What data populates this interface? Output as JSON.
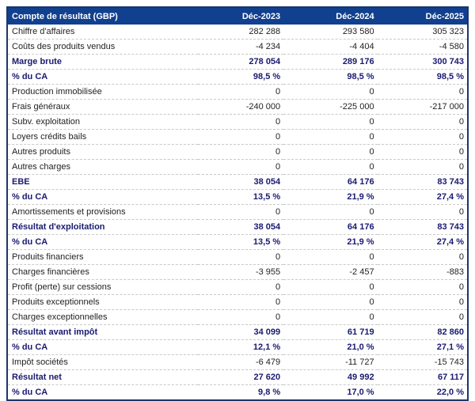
{
  "chart_data": {
    "type": "table",
    "title": "Compte de résultat (GBP)",
    "columns": [
      "Déc-2023",
      "Déc-2024",
      "Déc-2025"
    ],
    "rows": [
      {
        "label": "Chiffre d'affaires",
        "values": [
          "282 288",
          "293 580",
          "305 323"
        ],
        "bold": false
      },
      {
        "label": "Coûts des produits vendus",
        "values": [
          "-4 234",
          "-4 404",
          "-4 580"
        ],
        "bold": false
      },
      {
        "label": "Marge brute",
        "values": [
          "278 054",
          "289 176",
          "300 743"
        ],
        "bold": true
      },
      {
        "label": "% du CA",
        "values": [
          "98,5 %",
          "98,5 %",
          "98,5 %"
        ],
        "bold": true
      },
      {
        "label": "Production immobilisée",
        "values": [
          "0",
          "0",
          "0"
        ],
        "bold": false
      },
      {
        "label": "Frais généraux",
        "values": [
          "-240 000",
          "-225 000",
          "-217 000"
        ],
        "bold": false
      },
      {
        "label": "Subv. exploitation",
        "values": [
          "0",
          "0",
          "0"
        ],
        "bold": false
      },
      {
        "label": "Loyers crédits bails",
        "values": [
          "0",
          "0",
          "0"
        ],
        "bold": false
      },
      {
        "label": "Autres produits",
        "values": [
          "0",
          "0",
          "0"
        ],
        "bold": false
      },
      {
        "label": "Autres charges",
        "values": [
          "0",
          "0",
          "0"
        ],
        "bold": false
      },
      {
        "label": "EBE",
        "values": [
          "38 054",
          "64 176",
          "83 743"
        ],
        "bold": true
      },
      {
        "label": "% du CA",
        "values": [
          "13,5 %",
          "21,9 %",
          "27,4 %"
        ],
        "bold": true
      },
      {
        "label": "Amortissements et provisions",
        "values": [
          "0",
          "0",
          "0"
        ],
        "bold": false
      },
      {
        "label": "Résultat d'exploitation",
        "values": [
          "38 054",
          "64 176",
          "83 743"
        ],
        "bold": true
      },
      {
        "label": "% du CA",
        "values": [
          "13,5 %",
          "21,9 %",
          "27,4 %"
        ],
        "bold": true
      },
      {
        "label": "Produits financiers",
        "values": [
          "0",
          "0",
          "0"
        ],
        "bold": false
      },
      {
        "label": "Charges financières",
        "values": [
          "-3 955",
          "-2 457",
          "-883"
        ],
        "bold": false
      },
      {
        "label": "Profit (perte) sur cessions",
        "values": [
          "0",
          "0",
          "0"
        ],
        "bold": false
      },
      {
        "label": "Produits exceptionnels",
        "values": [
          "0",
          "0",
          "0"
        ],
        "bold": false
      },
      {
        "label": "Charges exceptionnelles",
        "values": [
          "0",
          "0",
          "0"
        ],
        "bold": false
      },
      {
        "label": "Résultat avant impôt",
        "values": [
          "34 099",
          "61 719",
          "82 860"
        ],
        "bold": true
      },
      {
        "label": "% du CA",
        "values": [
          "12,1 %",
          "21,0 %",
          "27,1 %"
        ],
        "bold": true
      },
      {
        "label": "Impôt sociétés",
        "values": [
          "-6 479",
          "-11 727",
          "-15 743"
        ],
        "bold": false
      },
      {
        "label": "Résultat net",
        "values": [
          "27 620",
          "49 992",
          "67 117"
        ],
        "bold": true
      },
      {
        "label": "% du CA",
        "values": [
          "9,8 %",
          "17,0 %",
          "22,0 %"
        ],
        "bold": true
      }
    ]
  },
  "colors": {
    "header_bg": "#11408f",
    "header_text": "#ffffff",
    "table_border": "#1c3667",
    "bold_row_text": "#1a1a70",
    "regular_row_text": "#1f1f1f",
    "row_separator": "#c9c9c9"
  }
}
